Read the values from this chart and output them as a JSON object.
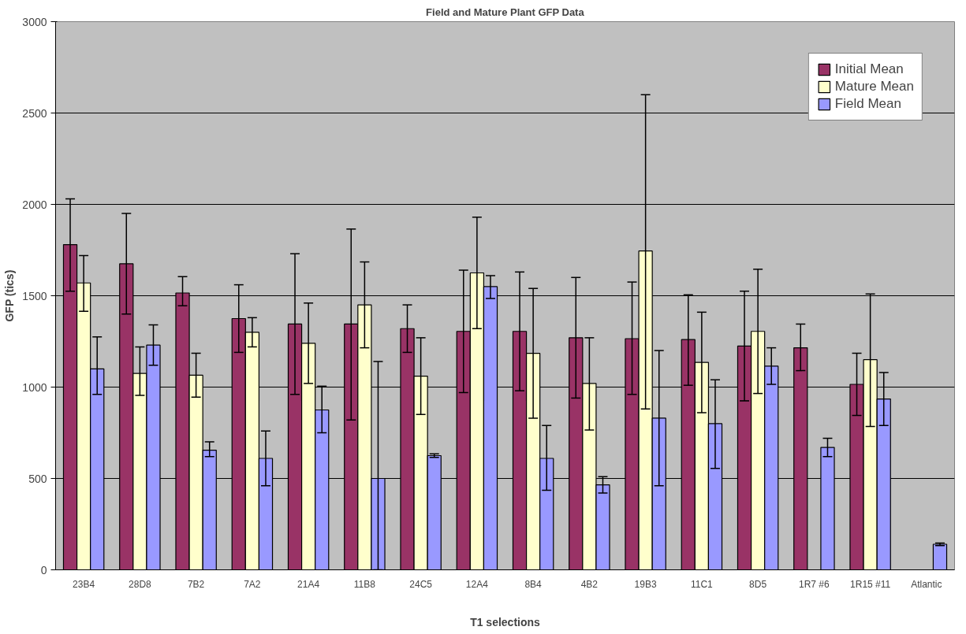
{
  "chart_data": {
    "type": "bar",
    "title": "Field and Mature Plant GFP Data",
    "xlabel": "T1 selections",
    "ylabel": "GFP (tics)",
    "categories": [
      "23B4",
      "28D8",
      "7B2",
      "7A2",
      "21A4",
      "11B8",
      "24C5",
      "12A4",
      "8B4",
      "4B2",
      "19B3",
      "11C1",
      "8D5",
      "1R7 #6",
      "1R15 #11",
      "Atlantic"
    ],
    "series": [
      {
        "name": "Initial Mean",
        "color": "#993366",
        "values": [
          1780,
          1675,
          1515,
          1375,
          1345,
          1345,
          1320,
          1305,
          1305,
          1270,
          1265,
          1260,
          1225,
          1215,
          1015,
          null
        ],
        "errors": [
          [
            1525,
            2030
          ],
          [
            1400,
            1950
          ],
          [
            1445,
            1605
          ],
          [
            1190,
            1560
          ],
          [
            960,
            1730
          ],
          [
            820,
            1865
          ],
          [
            1190,
            1450
          ],
          [
            970,
            1640
          ],
          [
            980,
            1630
          ],
          [
            940,
            1600
          ],
          [
            960,
            1575
          ],
          [
            1010,
            1505
          ],
          [
            925,
            1525
          ],
          [
            1090,
            1345
          ],
          [
            845,
            1185
          ],
          null
        ]
      },
      {
        "name": "Mature Mean",
        "color": "#ffffcc",
        "values": [
          1570,
          1075,
          1065,
          1300,
          1240,
          1450,
          1060,
          1625,
          1185,
          1020,
          1745,
          1135,
          1305,
          null,
          1150,
          null
        ],
        "errors": [
          [
            1415,
            1720
          ],
          [
            955,
            1220
          ],
          [
            945,
            1185
          ],
          [
            1220,
            1380
          ],
          [
            1020,
            1460
          ],
          [
            1215,
            1685
          ],
          [
            850,
            1270
          ],
          [
            1320,
            1930
          ],
          [
            830,
            1540
          ],
          [
            765,
            1270
          ],
          [
            880,
            2600
          ],
          [
            860,
            1410
          ],
          [
            965,
            1645
          ],
          null,
          [
            785,
            1510
          ],
          null
        ]
      },
      {
        "name": "Field Mean",
        "color": "#9999ff",
        "values": [
          1100,
          1230,
          655,
          610,
          875,
          500,
          625,
          1550,
          610,
          465,
          830,
          800,
          1115,
          670,
          935,
          140
        ],
        "errors": [
          [
            960,
            1275
          ],
          [
            1120,
            1340
          ],
          [
            620,
            700
          ],
          [
            460,
            760
          ],
          [
            750,
            1005
          ],
          [
            0,
            1140
          ],
          [
            615,
            635
          ],
          [
            1485,
            1610
          ],
          [
            435,
            790
          ],
          [
            420,
            510
          ],
          [
            460,
            1200
          ],
          [
            555,
            1040
          ],
          [
            1015,
            1215
          ],
          [
            620,
            720
          ],
          [
            790,
            1080
          ],
          [
            133,
            147
          ]
        ]
      }
    ],
    "ylim": [
      0,
      3000
    ],
    "yticks": [
      0,
      500,
      1000,
      1500,
      2000,
      2500,
      3000
    ],
    "grid": "y",
    "legend": "top right"
  }
}
